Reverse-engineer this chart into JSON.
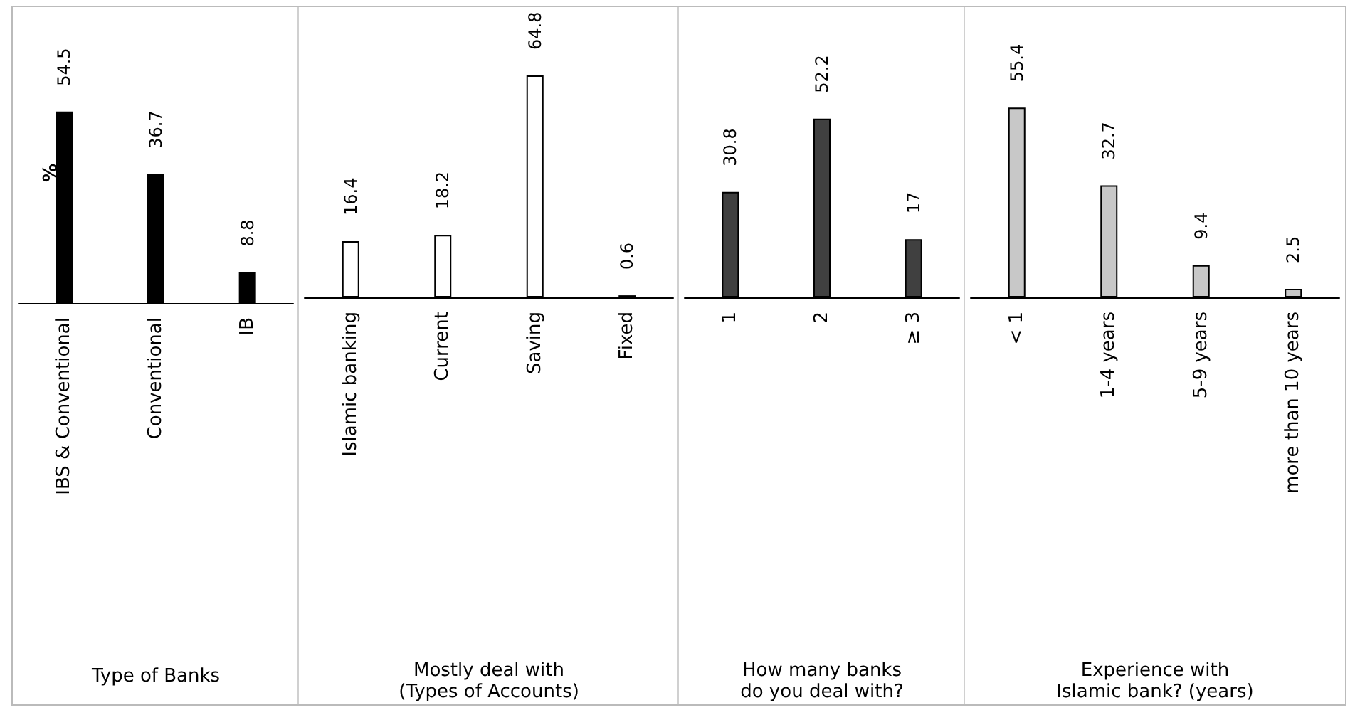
{
  "chart_data": [
    {
      "type": "bar",
      "ylabel": "%",
      "xlabel": "Type of Banks",
      "categories": [
        "IBS & Conventional",
        "Conventional",
        "IB"
      ],
      "values": [
        54.5,
        36.7,
        8.8
      ],
      "colors": [
        "#000000",
        "#000000",
        "#000000"
      ],
      "data_labels": true
    },
    {
      "type": "bar",
      "xlabel": "Mostly deal with\n(Types of Accounts)",
      "categories": [
        "Islamic banking",
        "Current",
        "Saving",
        "Fixed"
      ],
      "values": [
        16.4,
        18.2,
        64.8,
        0.6
      ],
      "colors": [
        "#ffffff",
        "#ffffff",
        "#ffffff",
        "#ffffff"
      ],
      "data_labels": true
    },
    {
      "type": "bar",
      "xlabel": "How many banks\ndo you deal with?",
      "categories": [
        "1",
        "2",
        "≥ 3"
      ],
      "values": [
        30.8,
        52.2,
        17
      ],
      "colors": [
        "#404040",
        "#404040",
        "#404040"
      ],
      "data_labels": true
    },
    {
      "type": "bar",
      "xlabel": "Experience with\nIslamic bank? (years)",
      "categories": [
        "< 1",
        "1-4 years",
        "5-9 years",
        "more than 10 years"
      ],
      "values": [
        55.4,
        32.7,
        9.4,
        2.5
      ],
      "colors": [
        "#c8c8c8",
        "#c8c8c8",
        "#c8c8c8",
        "#c8c8c8"
      ],
      "data_labels": true
    }
  ]
}
